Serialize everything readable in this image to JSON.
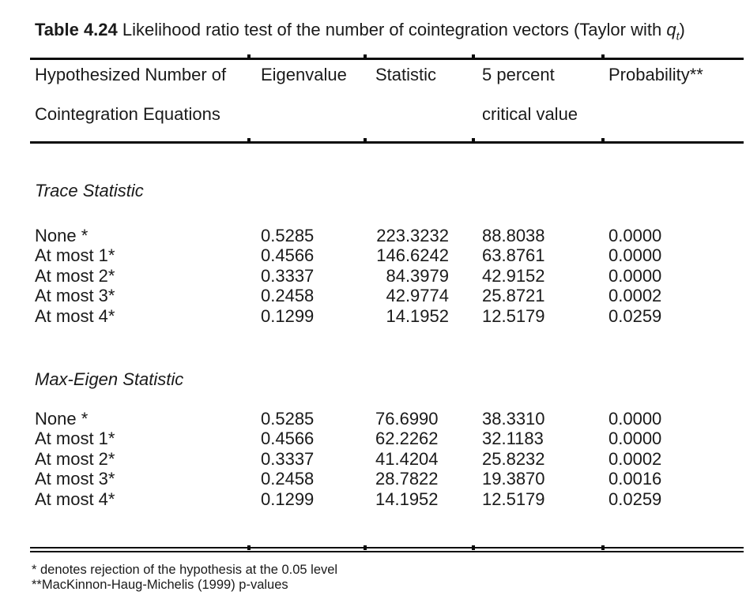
{
  "title": {
    "bold": "Table 4.24",
    "rest": " Likelihood ratio test of the number of cointegration vectors (Taylor with ",
    "variable": "q",
    "variable_sub": "t",
    "suffix": ")"
  },
  "header": {
    "hypothesized_line1": "Hypothesized Number of",
    "hypothesized_line2": "Cointegration Equations",
    "eigenvalue": "Eigenvalue",
    "statistic": "Statistic",
    "critical_line1": "5 percent",
    "critical_line2": "critical value",
    "probability": "Probability**"
  },
  "sections": [
    {
      "heading": "Trace Statistic",
      "rows": [
        {
          "hypothesis": "None *",
          "eigenvalue": "0.5285",
          "statistic": "223.3232",
          "critical_value": "88.8038",
          "probability": "0.0000"
        },
        {
          "hypothesis": "At most 1*",
          "eigenvalue": "0.4566",
          "statistic": "146.6242",
          "critical_value": "63.8761",
          "probability": "0.0000"
        },
        {
          "hypothesis": "At most 2*",
          "eigenvalue": "0.3337",
          "statistic": "84.3979",
          "critical_value": "42.9152",
          "probability": "0.0000"
        },
        {
          "hypothesis": "At most 3*",
          "eigenvalue": "0.2458",
          "statistic": "42.9774",
          "critical_value": "25.8721",
          "probability": "0.0002"
        },
        {
          "hypothesis": "At most 4*",
          "eigenvalue": "0.1299",
          "statistic": "14.1952",
          "critical_value": "12.5179",
          "probability": "0.0259"
        }
      ]
    },
    {
      "heading": "Max-Eigen Statistic",
      "rows": [
        {
          "hypothesis": "None *",
          "eigenvalue": "0.5285",
          "statistic": "76.6990",
          "critical_value": "38.3310",
          "probability": "0.0000"
        },
        {
          "hypothesis": "At most 1*",
          "eigenvalue": "0.4566",
          "statistic": "62.2262",
          "critical_value": "32.1183",
          "probability": "0.0000"
        },
        {
          "hypothesis": "At most 2*",
          "eigenvalue": "0.3337",
          "statistic": "41.4204",
          "critical_value": "25.8232",
          "probability": "0.0002"
        },
        {
          "hypothesis": "At most 3*",
          "eigenvalue": "0.2458",
          "statistic": "28.7822",
          "critical_value": "19.3870",
          "probability": "0.0016"
        },
        {
          "hypothesis": "At most 4*",
          "eigenvalue": "0.1299",
          "statistic": "14.1952",
          "critical_value": "12.5179",
          "probability": "0.0259"
        }
      ]
    }
  ],
  "footnotes": [
    "* denotes rejection of the hypothesis at the 0.05 level",
    "**MacKinnon-Haug-Michelis (1999) p-values"
  ]
}
